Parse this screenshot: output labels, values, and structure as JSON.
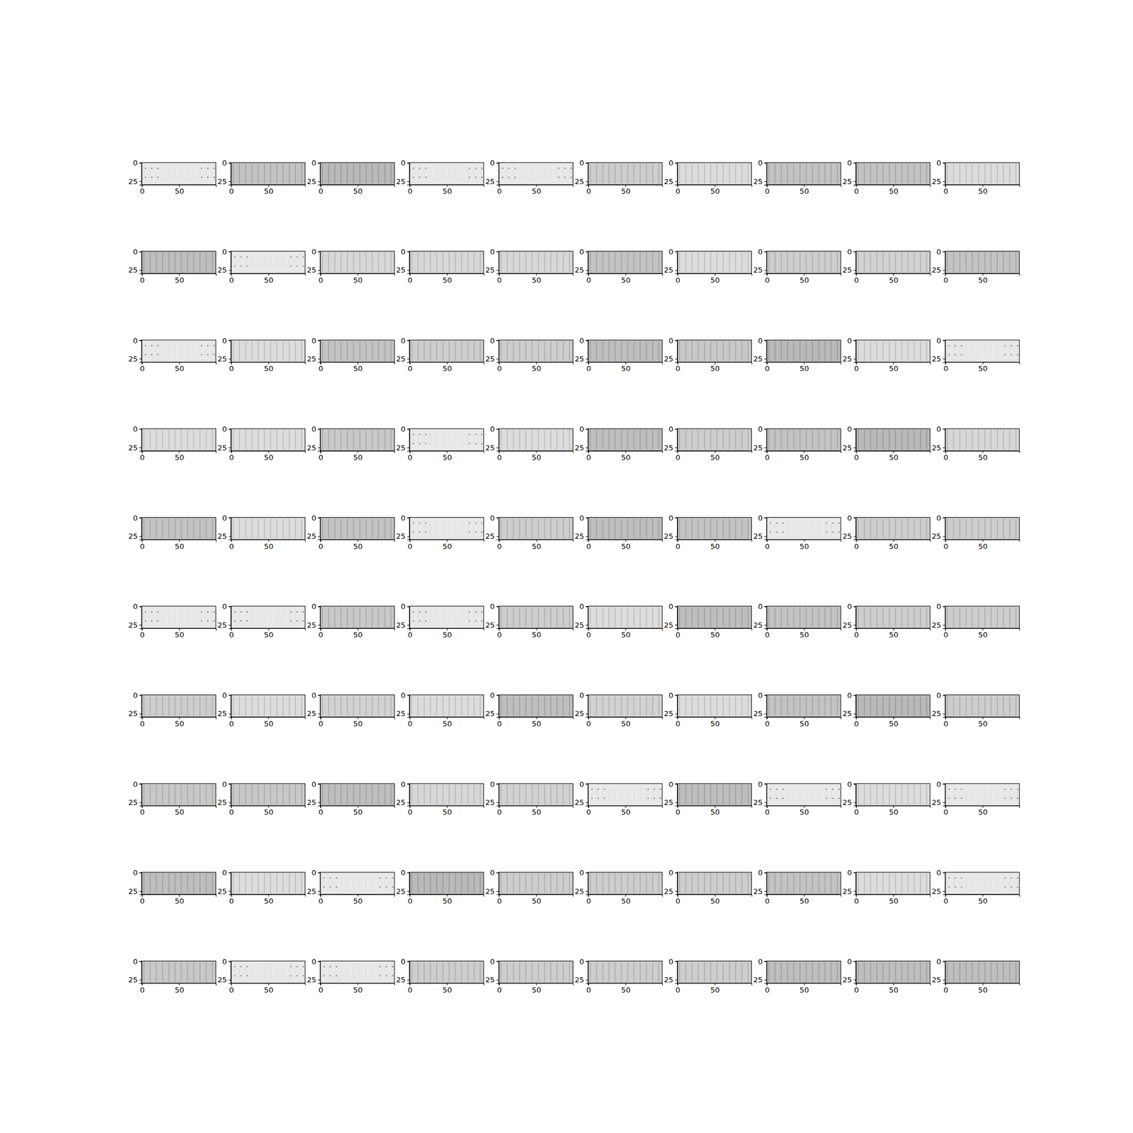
{
  "chart_data": {
    "type": "image",
    "xlim": [
      -0.5,
      99.5
    ],
    "ylim": [
      29.5,
      -0.5
    ],
    "xticks": [
      0,
      50
    ],
    "yticks": [
      0,
      25
    ],
    "cells": [
      [
        232,
        195,
        185,
        232,
        232,
        205,
        220,
        195,
        195,
        220
      ],
      [
        190,
        232,
        215,
        215,
        215,
        195,
        220,
        205,
        210,
        195
      ],
      [
        232,
        220,
        195,
        205,
        205,
        190,
        200,
        185,
        220,
        232
      ],
      [
        220,
        220,
        200,
        232,
        220,
        190,
        205,
        195,
        185,
        215
      ],
      [
        195,
        220,
        195,
        232,
        205,
        190,
        195,
        232,
        205,
        205
      ],
      [
        232,
        232,
        200,
        232,
        205,
        220,
        190,
        195,
        205,
        205
      ],
      [
        205,
        220,
        210,
        220,
        190,
        210,
        220,
        195,
        185,
        205
      ],
      [
        200,
        200,
        190,
        215,
        210,
        232,
        190,
        232,
        220,
        232
      ],
      [
        190,
        220,
        232,
        185,
        205,
        205,
        205,
        195,
        220,
        232
      ],
      [
        200,
        232,
        232,
        205,
        205,
        205,
        205,
        190,
        190,
        190
      ]
    ]
  }
}
